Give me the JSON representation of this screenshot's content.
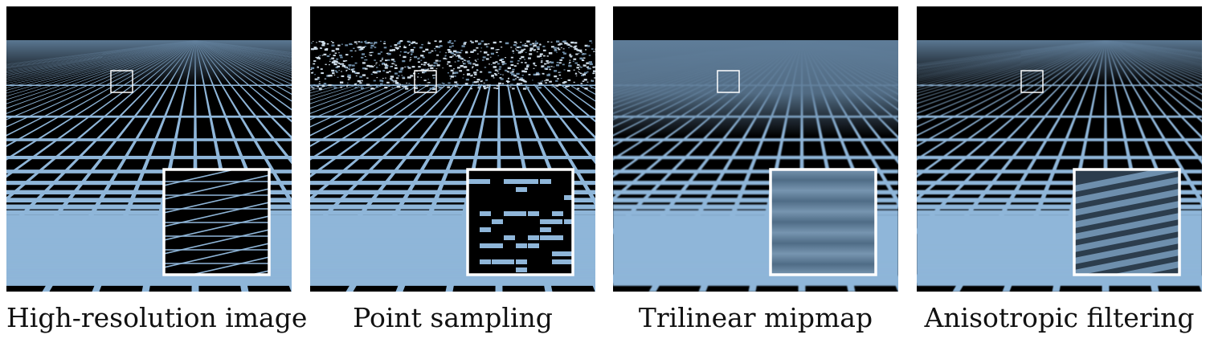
{
  "panels": [
    {
      "caption": "High-resolution image",
      "style": "sharp"
    },
    {
      "caption": "Point sampling",
      "style": "noise"
    },
    {
      "caption": "Trilinear mipmap",
      "style": "blur"
    },
    {
      "caption": "Anisotropic filtering",
      "style": "aniso"
    }
  ],
  "colors": {
    "sky": "#000000",
    "floor": "#000000",
    "line": "#8fb6d9",
    "horizon": "#5f7d99",
    "frame": "#ffffff"
  }
}
